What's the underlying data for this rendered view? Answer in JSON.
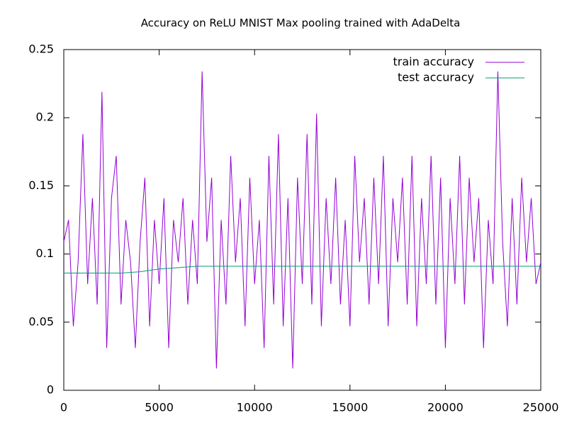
{
  "chart_data": {
    "type": "line",
    "title": "Accuracy on ReLU MNIST Max pooling trained with AdaDelta",
    "xlim": [
      0,
      25000
    ],
    "xticks": [
      0,
      5000,
      10000,
      15000,
      20000,
      25000
    ],
    "ylim": [
      0,
      0.25
    ],
    "yticks": [
      0,
      0.05,
      0.1,
      0.15,
      0.2,
      0.25
    ],
    "legend": "top-right",
    "grid": false,
    "series": [
      {
        "name": "train accuracy",
        "color": "#9400d3",
        "x": [
          0,
          250,
          500,
          750,
          1000,
          1250,
          1500,
          1750,
          2000,
          2250,
          2500,
          2750,
          3000,
          3250,
          3500,
          3750,
          4000,
          4250,
          4500,
          4750,
          5000,
          5250,
          5500,
          5750,
          6000,
          6250,
          6500,
          6750,
          7000,
          7250,
          7500,
          7750,
          8000,
          8250,
          8500,
          8750,
          9000,
          9250,
          9500,
          9750,
          10000,
          10250,
          10500,
          10750,
          11000,
          11250,
          11500,
          11750,
          12000,
          12250,
          12500,
          12750,
          13000,
          13250,
          13500,
          13750,
          14000,
          14250,
          14500,
          14750,
          15000,
          15250,
          15500,
          15750,
          16000,
          16250,
          16500,
          16750,
          17000,
          17250,
          17500,
          17750,
          18000,
          18250,
          18500,
          18750,
          19000,
          19250,
          19500,
          19750,
          20000,
          20250,
          20500,
          20750,
          21000,
          21250,
          21500,
          21750,
          22000,
          22250,
          22500,
          22750,
          23000,
          23250,
          23500,
          23750,
          24000,
          24250,
          24500,
          24750,
          25000
        ],
        "values": [
          0.109,
          0.125,
          0.047,
          0.094,
          0.188,
          0.078,
          0.141,
          0.063,
          0.219,
          0.031,
          0.141,
          0.172,
          0.063,
          0.125,
          0.094,
          0.031,
          0.109,
          0.156,
          0.047,
          0.125,
          0.078,
          0.141,
          0.031,
          0.125,
          0.094,
          0.141,
          0.063,
          0.125,
          0.078,
          0.234,
          0.109,
          0.156,
          0.016,
          0.125,
          0.063,
          0.172,
          0.094,
          0.141,
          0.047,
          0.156,
          0.078,
          0.125,
          0.031,
          0.172,
          0.063,
          0.188,
          0.047,
          0.141,
          0.016,
          0.156,
          0.078,
          0.188,
          0.063,
          0.203,
          0.047,
          0.141,
          0.078,
          0.156,
          0.063,
          0.125,
          0.047,
          0.172,
          0.094,
          0.141,
          0.063,
          0.156,
          0.078,
          0.172,
          0.047,
          0.141,
          0.094,
          0.156,
          0.063,
          0.172,
          0.047,
          0.141,
          0.078,
          0.172,
          0.063,
          0.156,
          0.031,
          0.141,
          0.078,
          0.172,
          0.063,
          0.156,
          0.094,
          0.141,
          0.031,
          0.125,
          0.078,
          0.234,
          0.109,
          0.047,
          0.141,
          0.063,
          0.156,
          0.094,
          0.141,
          0.078,
          0.094
        ]
      },
      {
        "name": "test accuracy",
        "color": "#009e73",
        "x": [
          0,
          1000,
          2000,
          3000,
          4000,
          5000,
          6000,
          7000,
          8000,
          9000,
          10000,
          11000,
          12000,
          13000,
          14000,
          15000,
          16000,
          17000,
          18000,
          19000,
          20000,
          21000,
          22000,
          23000,
          24000,
          25000
        ],
        "values": [
          0.086,
          0.086,
          0.086,
          0.086,
          0.087,
          0.089,
          0.09,
          0.091,
          0.091,
          0.091,
          0.091,
          0.091,
          0.091,
          0.091,
          0.091,
          0.091,
          0.091,
          0.091,
          0.091,
          0.091,
          0.091,
          0.091,
          0.091,
          0.091,
          0.091,
          0.091
        ]
      }
    ]
  }
}
